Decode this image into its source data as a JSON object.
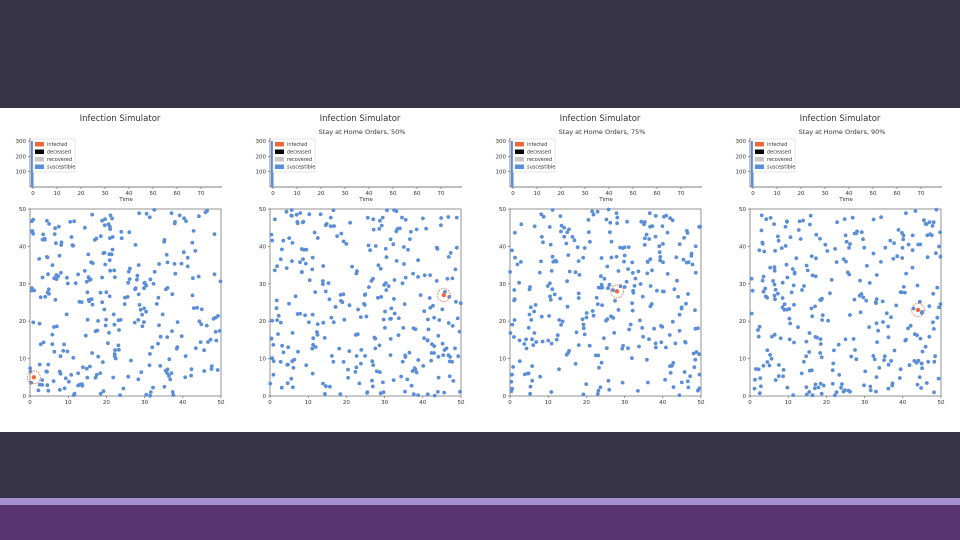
{
  "colors": {
    "background": "#363446",
    "panel": "#ffffff",
    "stripe": "#a58fd0",
    "footer": "#5a3470",
    "infected": "#f2683a",
    "deceased": "#000000",
    "recovered": "#c8c8c8",
    "susceptible": "#5b8ed6"
  },
  "chart_data": [
    {
      "type": "scatter",
      "title": "Infection Simulator",
      "subtitle": "",
      "legend": [
        "infected",
        "deceased",
        "recovered",
        "susceptible"
      ],
      "top_chart": {
        "type": "area",
        "xlabel": "Time",
        "xticks": [
          0,
          10,
          20,
          30,
          40,
          50,
          60,
          70
        ],
        "yticks": [
          100,
          200,
          300
        ],
        "ylim": [
          0,
          300
        ],
        "series": {
          "infected": [
            1
          ],
          "deceased": [
            0
          ],
          "recovered": [
            0
          ],
          "susceptible": [
            299
          ]
        }
      },
      "scatter": {
        "xlim": [
          0,
          50
        ],
        "ylim": [
          0,
          50
        ],
        "xticks": [
          0,
          10,
          20,
          30,
          40,
          50
        ],
        "yticks": [
          0,
          10,
          20,
          30,
          40,
          50
        ],
        "n_susceptible": 300,
        "seed": 11,
        "infected_points": [
          [
            1,
            5
          ]
        ]
      }
    },
    {
      "type": "scatter",
      "title": "Infection Simulator",
      "subtitle": "Stay at Home Orders, 50%",
      "legend": [
        "infected",
        "deceased",
        "recovered",
        "susceptible"
      ],
      "top_chart": {
        "type": "area",
        "xlabel": "Time",
        "xticks": [
          0,
          10,
          20,
          30,
          40,
          50,
          60,
          70
        ],
        "yticks": [
          100,
          200,
          300
        ],
        "ylim": [
          0,
          300
        ],
        "series": {
          "infected": [
            1
          ],
          "deceased": [
            0
          ],
          "recovered": [
            0
          ],
          "susceptible": [
            299
          ]
        }
      },
      "scatter": {
        "xlim": [
          0,
          50
        ],
        "ylim": [
          0,
          50
        ],
        "xticks": [
          0,
          10,
          20,
          30,
          40,
          50
        ],
        "yticks": [
          0,
          10,
          20,
          30,
          40,
          50
        ],
        "n_susceptible": 300,
        "seed": 23,
        "infected_points": [
          [
            45.5,
            27
          ]
        ]
      }
    },
    {
      "type": "scatter",
      "title": "Infection Simulator",
      "subtitle": "Stay at Home Orders, 75%",
      "legend": [
        "infected",
        "deceased",
        "recovered",
        "susceptible"
      ],
      "top_chart": {
        "type": "area",
        "xlabel": "Time",
        "xticks": [
          0,
          10,
          20,
          30,
          40,
          50,
          60,
          70
        ],
        "yticks": [
          100,
          200,
          300
        ],
        "ylim": [
          0,
          300
        ],
        "series": {
          "infected": [
            1
          ],
          "deceased": [
            0
          ],
          "recovered": [
            0
          ],
          "susceptible": [
            299
          ]
        }
      },
      "scatter": {
        "xlim": [
          0,
          50
        ],
        "ylim": [
          0,
          50
        ],
        "xticks": [
          0,
          10,
          20,
          30,
          40,
          50
        ],
        "yticks": [
          0,
          10,
          20,
          30,
          40,
          50
        ],
        "n_susceptible": 300,
        "seed": 37,
        "infected_points": [
          [
            28,
            28
          ]
        ]
      }
    },
    {
      "type": "scatter",
      "title": "Infection Simulator",
      "subtitle": "Stay at Home Orders, 90%",
      "legend": [
        "infected",
        "deceased",
        "recovered",
        "susceptible"
      ],
      "top_chart": {
        "type": "area",
        "xlabel": "Time",
        "xticks": [
          0,
          10,
          20,
          30,
          40,
          50,
          60,
          70
        ],
        "yticks": [
          100,
          200,
          300
        ],
        "ylim": [
          0,
          300
        ],
        "series": {
          "infected": [
            1
          ],
          "deceased": [
            0
          ],
          "recovered": [
            0
          ],
          "susceptible": [
            299
          ]
        }
      },
      "scatter": {
        "xlim": [
          0,
          50
        ],
        "ylim": [
          0,
          50
        ],
        "xticks": [
          0,
          10,
          20,
          30,
          40,
          50
        ],
        "yticks": [
          0,
          10,
          20,
          30,
          40,
          50
        ],
        "n_susceptible": 300,
        "seed": 53,
        "infected_points": [
          [
            44,
            23
          ]
        ]
      }
    }
  ]
}
